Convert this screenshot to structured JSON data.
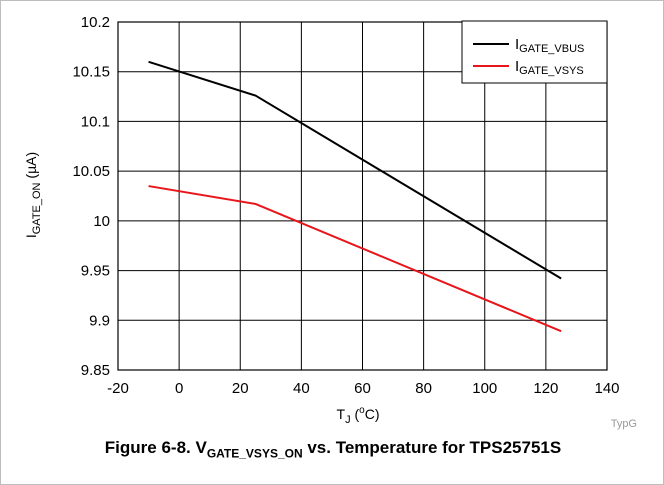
{
  "chart_data": {
    "type": "line",
    "xlabel": {
      "main": "T",
      "sub": "J",
      "unit_prefix": " (",
      "sup": "o",
      "unit_suffix": "C)"
    },
    "ylabel": {
      "main": "I",
      "sub": "GATE_ON",
      "unit": " (µA)"
    },
    "xlim": [
      -20,
      140
    ],
    "ylim": [
      9.85,
      10.2
    ],
    "x_ticks": [
      "-20",
      "0",
      "20",
      "40",
      "60",
      "80",
      "100",
      "120",
      "140"
    ],
    "y_ticks": [
      "9.85",
      "9.9",
      "9.95",
      "10",
      "10.05",
      "10.1",
      "10.15",
      "10.2"
    ],
    "grid": true,
    "legend_position": "top-right",
    "series": [
      {
        "name_main": "I",
        "name_sub": "GATE_VBUS",
        "color": "#000000",
        "x": [
          -10,
          25,
          125
        ],
        "y": [
          10.16,
          10.126,
          9.942
        ]
      },
      {
        "name_main": "I",
        "name_sub": "GATE_VSYS",
        "color": "#e8161b",
        "x": [
          -10,
          25,
          125
        ],
        "y": [
          10.035,
          10.017,
          9.889
        ]
      }
    ]
  },
  "watermark": "TypG",
  "caption": {
    "prefix": "Figure 6-8. V",
    "sub": "GATE_VSYS_ON",
    "suffix": " vs. Temperature for TPS25751S"
  }
}
